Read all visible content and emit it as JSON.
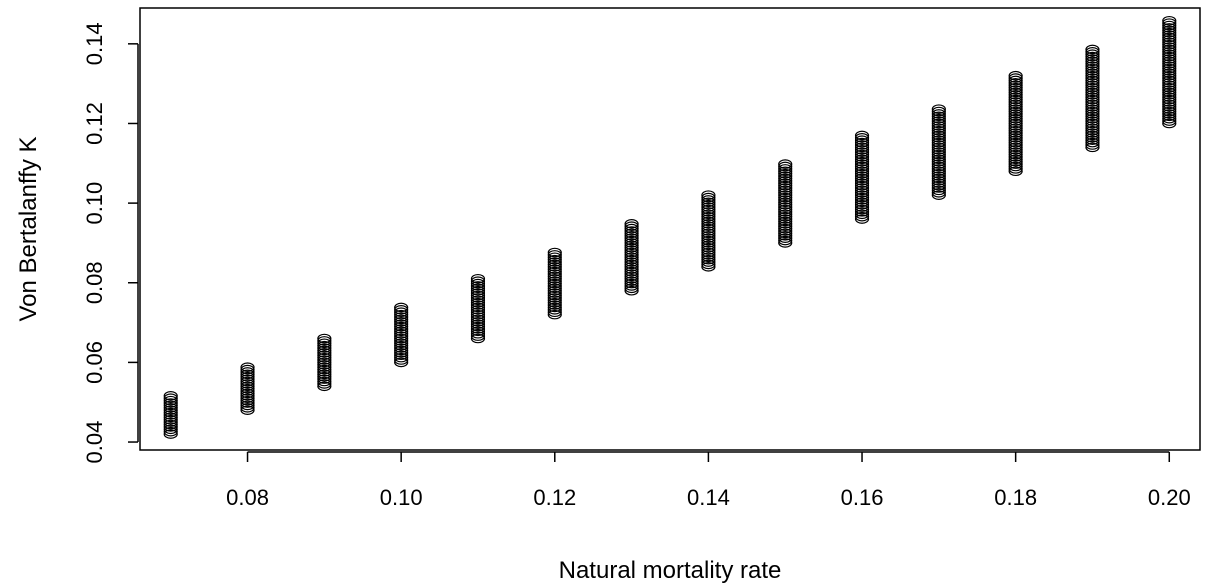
{
  "chart_data": {
    "type": "scatter",
    "title": "",
    "xlabel": "Natural mortality rate",
    "ylabel": "Von Bertalanffy K",
    "xlim": [
      0.066,
      0.204
    ],
    "ylim": [
      0.038,
      0.149
    ],
    "x_ticks": [
      "0.08",
      "0.10",
      "0.12",
      "0.14",
      "0.16",
      "0.18",
      "0.20"
    ],
    "y_ticks": [
      "0.04",
      "0.06",
      "0.08",
      "0.10",
      "0.12",
      "0.14"
    ],
    "marker": "open-circle",
    "grid": false,
    "series": [
      {
        "columns": [
          {
            "x": 0.07,
            "y_min": 0.042,
            "y_max": 0.052
          },
          {
            "x": 0.08,
            "y_min": 0.048,
            "y_max": 0.059
          },
          {
            "x": 0.09,
            "y_min": 0.054,
            "y_max": 0.066
          },
          {
            "x": 0.1,
            "y_min": 0.06,
            "y_max": 0.074
          },
          {
            "x": 0.11,
            "y_min": 0.066,
            "y_max": 0.081
          },
          {
            "x": 0.12,
            "y_min": 0.072,
            "y_max": 0.088
          },
          {
            "x": 0.13,
            "y_min": 0.078,
            "y_max": 0.095
          },
          {
            "x": 0.14,
            "y_min": 0.084,
            "y_max": 0.102
          },
          {
            "x": 0.15,
            "y_min": 0.09,
            "y_max": 0.11
          },
          {
            "x": 0.16,
            "y_min": 0.096,
            "y_max": 0.117
          },
          {
            "x": 0.17,
            "y_min": 0.102,
            "y_max": 0.124
          },
          {
            "x": 0.18,
            "y_min": 0.108,
            "y_max": 0.132
          },
          {
            "x": 0.19,
            "y_min": 0.114,
            "y_max": 0.139
          },
          {
            "x": 0.2,
            "y_min": 0.12,
            "y_max": 0.146
          }
        ]
      }
    ]
  }
}
